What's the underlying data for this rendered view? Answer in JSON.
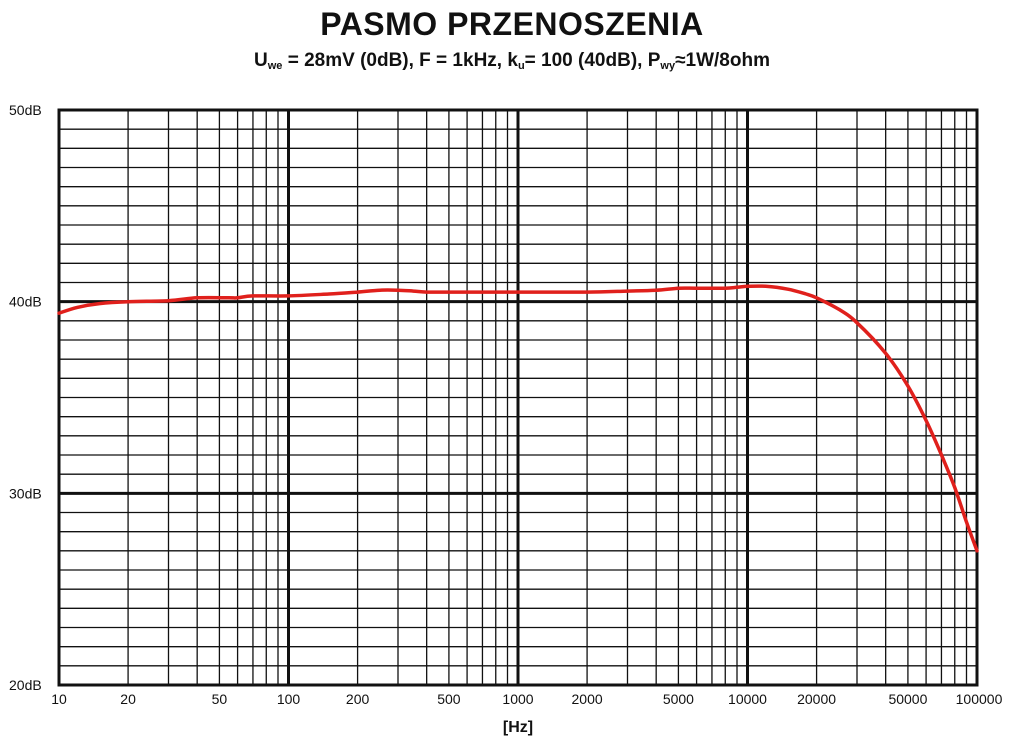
{
  "header": {
    "title": "PASMO PRZENOSZENIA",
    "subtitle": {
      "u_sym": "U",
      "u_sub": "we",
      "u_rest": " = 28mV (0dB), F = 1kHz, ",
      "k_sym": "k",
      "k_sub": "u",
      "k_rest": "= 100 (40dB), ",
      "p_sym": "P",
      "p_sub": "wy",
      "p_rest": "≈1W/8ohm"
    }
  },
  "chart_data": {
    "type": "line",
    "title": "PASMO PRZENOSZENIA",
    "xlabel": "[Hz]",
    "ylabel": "",
    "xscale": "log",
    "xlim": [
      10,
      100000
    ],
    "ylim": [
      20,
      50
    ],
    "grid": true,
    "x_ticks": [
      10,
      20,
      50,
      100,
      200,
      500,
      1000,
      2000,
      5000,
      10000,
      20000,
      50000,
      100000
    ],
    "x_tick_labels": [
      "10",
      "20",
      "50",
      "100",
      "200",
      "500",
      "1000",
      "2000",
      "5000",
      "10000",
      "20000",
      "50000",
      "100000"
    ],
    "y_ticks": [
      20,
      30,
      40,
      50
    ],
    "y_tick_labels": [
      "20dB",
      "30dB",
      "40dB",
      "50dB"
    ],
    "series": [
      {
        "color": "#e0201c",
        "x": [
          10,
          12,
          15,
          20,
          30,
          40,
          55,
          60,
          70,
          100,
          150,
          200,
          250,
          300,
          350,
          400,
          500,
          700,
          1000,
          2000,
          3000,
          4000,
          5000,
          6000,
          8000,
          9000,
          10000,
          12000,
          15000,
          18000,
          20000,
          25000,
          30000,
          40000,
          50000,
          60000,
          70000,
          80000,
          90000,
          100000
        ],
        "y": [
          39.4,
          39.7,
          39.9,
          40.0,
          40.05,
          40.2,
          40.2,
          40.2,
          40.3,
          40.3,
          40.4,
          40.5,
          40.6,
          40.6,
          40.55,
          40.5,
          40.5,
          40.5,
          40.5,
          40.5,
          40.55,
          40.6,
          40.7,
          40.7,
          40.7,
          40.75,
          40.8,
          40.8,
          40.65,
          40.4,
          40.2,
          39.6,
          38.9,
          37.3,
          35.6,
          33.8,
          32.0,
          30.3,
          28.5,
          27.0
        ]
      }
    ]
  }
}
